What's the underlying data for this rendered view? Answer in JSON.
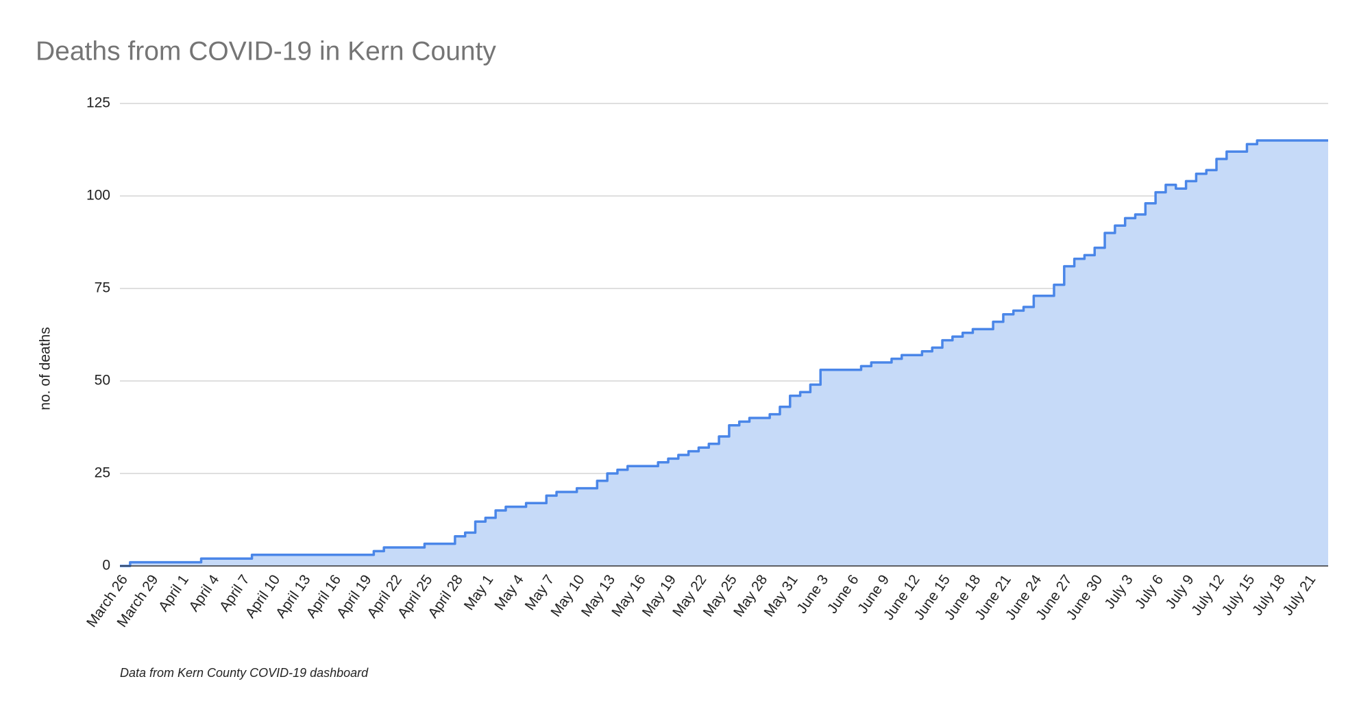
{
  "chart_data": {
    "type": "stepped-area",
    "title": "Deaths from COVID-19 in Kern County",
    "y_label": "no. of deaths",
    "footnote": "Data from Kern County COVID-19 dashboard",
    "categories": [
      "March 26",
      null,
      null,
      "March 29",
      null,
      null,
      "April 1",
      null,
      null,
      "April 4",
      null,
      null,
      "April 7",
      null,
      null,
      "April 10",
      null,
      null,
      "April 13",
      null,
      null,
      "April 16",
      null,
      null,
      "April 19",
      null,
      null,
      "April 22",
      null,
      null,
      "April 25",
      null,
      null,
      "April 28",
      null,
      null,
      "May 1",
      null,
      null,
      "May 4",
      null,
      null,
      "May 7",
      null,
      null,
      "May 10",
      null,
      null,
      "May 13",
      null,
      null,
      "May 16",
      null,
      null,
      "May 19",
      null,
      null,
      "May 22",
      null,
      null,
      "May 25",
      null,
      null,
      "May 28",
      null,
      null,
      "May 31",
      null,
      null,
      "June 3",
      null,
      null,
      "June 6",
      null,
      null,
      "June 9",
      null,
      null,
      "June 12",
      null,
      null,
      "June 15",
      null,
      null,
      "June 18",
      null,
      null,
      "June 21",
      null,
      null,
      "June 24",
      null,
      null,
      "June 27",
      null,
      null,
      "June 30",
      null,
      null,
      "July 3",
      null,
      null,
      "July 6",
      null,
      null,
      "July 9",
      null,
      null,
      "July 12",
      null,
      null,
      "July 15",
      null,
      null,
      "July 18",
      null,
      null,
      "July 21",
      null
    ],
    "values": [
      0,
      1,
      1,
      1,
      1,
      1,
      1,
      1,
      2,
      2,
      2,
      2,
      2,
      3,
      3,
      3,
      3,
      3,
      3,
      3,
      3,
      3,
      3,
      3,
      3,
      4,
      5,
      5,
      5,
      5,
      6,
      6,
      6,
      8,
      9,
      12,
      13,
      15,
      16,
      16,
      17,
      17,
      19,
      20,
      20,
      21,
      21,
      23,
      25,
      26,
      27,
      27,
      27,
      28,
      29,
      30,
      31,
      32,
      33,
      35,
      38,
      39,
      40,
      40,
      41,
      43,
      46,
      47,
      49,
      53,
      53,
      53,
      53,
      54,
      55,
      55,
      56,
      57,
      57,
      58,
      59,
      61,
      62,
      63,
      64,
      64,
      66,
      68,
      69,
      70,
      73,
      73,
      76,
      81,
      83,
      84,
      86,
      90,
      92,
      94,
      95,
      98,
      101,
      103,
      102,
      104,
      106,
      107,
      110,
      112,
      112,
      114,
      115,
      115,
      115,
      115,
      115,
      115,
      115
    ],
    "color": "#4a86e8",
    "fill": "#c6daf8",
    "ylim": [
      0,
      125
    ],
    "yticks": [
      0,
      25,
      50,
      75,
      100,
      125
    ],
    "grid": true
  }
}
